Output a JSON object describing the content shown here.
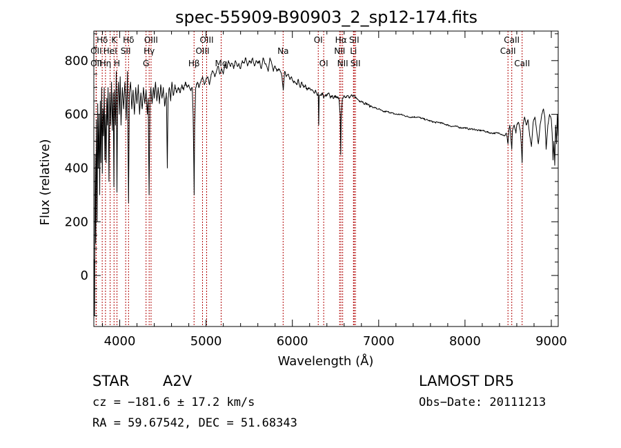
{
  "chart_data": {
    "type": "line",
    "title": "spec-55909-B90903_2_sp12-174.fits",
    "xlabel": "Wavelength (Å)",
    "ylabel": "Flux (relative)",
    "xlim": [
      3700,
      9080
    ],
    "ylim": [
      -190,
      910
    ],
    "xticks": [
      4000,
      5000,
      6000,
      7000,
      8000,
      9000
    ],
    "yticks": [
      0,
      200,
      400,
      600,
      800
    ],
    "grid": false,
    "line_color": "#000000",
    "marker_color": "#b00000",
    "spectrum_anchors": [
      [
        3702,
        60
      ],
      [
        3708,
        -150
      ],
      [
        3715,
        450
      ],
      [
        3722,
        120
      ],
      [
        3730,
        580
      ],
      [
        3738,
        200
      ],
      [
        3745,
        640
      ],
      [
        3752,
        400
      ],
      [
        3760,
        600
      ],
      [
        3768,
        300
      ],
      [
        3775,
        650
      ],
      [
        3782,
        420
      ],
      [
        3790,
        700
      ],
      [
        3798,
        380
      ],
      [
        3805,
        620
      ],
      [
        3812,
        520
      ],
      [
        3820,
        700
      ],
      [
        3828,
        430
      ],
      [
        3835,
        600
      ],
      [
        3842,
        420
      ],
      [
        3850,
        660
      ],
      [
        3858,
        560
      ],
      [
        3865,
        700
      ],
      [
        3875,
        350
      ],
      [
        3885,
        680
      ],
      [
        3895,
        560
      ],
      [
        3905,
        720
      ],
      [
        3915,
        540
      ],
      [
        3925,
        680
      ],
      [
        3933,
        330
      ],
      [
        3940,
        690
      ],
      [
        3950,
        560
      ],
      [
        3960,
        760
      ],
      [
        3968,
        310
      ],
      [
        3975,
        640
      ],
      [
        3985,
        720
      ],
      [
        3995,
        600
      ],
      [
        4005,
        740
      ],
      [
        4015,
        560
      ],
      [
        4030,
        700
      ],
      [
        4045,
        620
      ],
      [
        4060,
        720
      ],
      [
        4075,
        580
      ],
      [
        4090,
        760
      ],
      [
        4102,
        270
      ],
      [
        4112,
        680
      ],
      [
        4125,
        720
      ],
      [
        4140,
        620
      ],
      [
        4155,
        690
      ],
      [
        4170,
        600
      ],
      [
        4185,
        700
      ],
      [
        4200,
        640
      ],
      [
        4215,
        710
      ],
      [
        4230,
        600
      ],
      [
        4245,
        680
      ],
      [
        4260,
        620
      ],
      [
        4275,
        700
      ],
      [
        4290,
        640
      ],
      [
        4305,
        690
      ],
      [
        4320,
        600
      ],
      [
        4330,
        660
      ],
      [
        4340,
        300
      ],
      [
        4350,
        640
      ],
      [
        4360,
        700
      ],
      [
        4375,
        640
      ],
      [
        4390,
        700
      ],
      [
        4400,
        660
      ],
      [
        4415,
        720
      ],
      [
        4430,
        650
      ],
      [
        4445,
        700
      ],
      [
        4460,
        640
      ],
      [
        4475,
        710
      ],
      [
        4490,
        660
      ],
      [
        4505,
        700
      ],
      [
        4520,
        630
      ],
      [
        4540,
        680
      ],
      [
        4551,
        400
      ],
      [
        4560,
        660
      ],
      [
        4575,
        700
      ],
      [
        4590,
        650
      ],
      [
        4605,
        720
      ],
      [
        4620,
        670
      ],
      [
        4640,
        710
      ],
      [
        4660,
        680
      ],
      [
        4680,
        700
      ],
      [
        4700,
        680
      ],
      [
        4720,
        710
      ],
      [
        4740,
        690
      ],
      [
        4760,
        720
      ],
      [
        4780,
        700
      ],
      [
        4800,
        710
      ],
      [
        4820,
        690
      ],
      [
        4840,
        700
      ],
      [
        4850,
        600
      ],
      [
        4858,
        410
      ],
      [
        4862,
        300
      ],
      [
        4868,
        560
      ],
      [
        4880,
        700
      ],
      [
        4900,
        720
      ],
      [
        4920,
        700
      ],
      [
        4940,
        720
      ],
      [
        4960,
        740
      ],
      [
        4980,
        710
      ],
      [
        5000,
        730
      ],
      [
        5020,
        740
      ],
      [
        5040,
        710
      ],
      [
        5060,
        750
      ],
      [
        5080,
        760
      ],
      [
        5100,
        740
      ],
      [
        5120,
        760
      ],
      [
        5140,
        780
      ],
      [
        5160,
        750
      ],
      [
        5180,
        770
      ],
      [
        5200,
        750
      ],
      [
        5220,
        790
      ],
      [
        5240,
        770
      ],
      [
        5260,
        800
      ],
      [
        5280,
        780
      ],
      [
        5300,
        790
      ],
      [
        5320,
        770
      ],
      [
        5340,
        800
      ],
      [
        5360,
        780
      ],
      [
        5380,
        790
      ],
      [
        5400,
        770
      ],
      [
        5420,
        800
      ],
      [
        5440,
        790
      ],
      [
        5460,
        810
      ],
      [
        5480,
        780
      ],
      [
        5500,
        800
      ],
      [
        5520,
        790
      ],
      [
        5540,
        810
      ],
      [
        5560,
        780
      ],
      [
        5580,
        800
      ],
      [
        5600,
        790
      ],
      [
        5620,
        800
      ],
      [
        5640,
        770
      ],
      [
        5660,
        810
      ],
      [
        5680,
        790
      ],
      [
        5700,
        780
      ],
      [
        5720,
        760
      ],
      [
        5740,
        810
      ],
      [
        5760,
        790
      ],
      [
        5780,
        760
      ],
      [
        5800,
        780
      ],
      [
        5820,
        760
      ],
      [
        5840,
        770
      ],
      [
        5860,
        760
      ],
      [
        5880,
        740
      ],
      [
        5895,
        690
      ],
      [
        5910,
        760
      ],
      [
        5930,
        740
      ],
      [
        5950,
        750
      ],
      [
        5970,
        730
      ],
      [
        5990,
        740
      ],
      [
        6010,
        720
      ],
      [
        6030,
        720
      ],
      [
        6050,
        710
      ],
      [
        6070,
        730
      ],
      [
        6090,
        700
      ],
      [
        6110,
        720
      ],
      [
        6130,
        700
      ],
      [
        6150,
        710
      ],
      [
        6170,
        690
      ],
      [
        6190,
        700
      ],
      [
        6210,
        690
      ],
      [
        6230,
        690
      ],
      [
        6250,
        680
      ],
      [
        6270,
        690
      ],
      [
        6290,
        670
      ],
      [
        6300,
        680
      ],
      [
        6305,
        560
      ],
      [
        6310,
        670
      ],
      [
        6330,
        670
      ],
      [
        6350,
        680
      ],
      [
        6363,
        660
      ],
      [
        6380,
        670
      ],
      [
        6400,
        670
      ],
      [
        6420,
        680
      ],
      [
        6440,
        660
      ],
      [
        6460,
        670
      ],
      [
        6480,
        660
      ],
      [
        6500,
        670
      ],
      [
        6520,
        660
      ],
      [
        6540,
        660
      ],
      [
        6555,
        600
      ],
      [
        6560,
        450
      ],
      [
        6565,
        580
      ],
      [
        6580,
        660
      ],
      [
        6600,
        670
      ],
      [
        6620,
        665
      ],
      [
        6640,
        670
      ],
      [
        6660,
        660
      ],
      [
        6680,
        670
      ],
      [
        6700,
        665
      ],
      [
        6720,
        670
      ],
      [
        6740,
        660
      ],
      [
        6760,
        655
      ],
      [
        6780,
        650
      ],
      [
        6800,
        650
      ],
      [
        6820,
        645
      ],
      [
        6840,
        640
      ],
      [
        6860,
        640
      ],
      [
        6880,
        635
      ],
      [
        6900,
        630
      ],
      [
        6920,
        630
      ],
      [
        6940,
        625
      ],
      [
        6960,
        625
      ],
      [
        6980,
        620
      ],
      [
        7000,
        620
      ],
      [
        7050,
        610
      ],
      [
        7100,
        610
      ],
      [
        7150,
        605
      ],
      [
        7200,
        600
      ],
      [
        7250,
        600
      ],
      [
        7300,
        595
      ],
      [
        7350,
        590
      ],
      [
        7400,
        590
      ],
      [
        7450,
        590
      ],
      [
        7500,
        585
      ],
      [
        7550,
        580
      ],
      [
        7600,
        575
      ],
      [
        7650,
        570
      ],
      [
        7700,
        570
      ],
      [
        7750,
        565
      ],
      [
        7800,
        560
      ],
      [
        7850,
        555
      ],
      [
        7900,
        555
      ],
      [
        7950,
        550
      ],
      [
        8000,
        550
      ],
      [
        8050,
        545
      ],
      [
        8100,
        545
      ],
      [
        8150,
        540
      ],
      [
        8200,
        540
      ],
      [
        8250,
        535
      ],
      [
        8300,
        530
      ],
      [
        8350,
        530
      ],
      [
        8400,
        530
      ],
      [
        8430,
        525
      ],
      [
        8460,
        520
      ],
      [
        8480,
        530
      ],
      [
        8498,
        490
      ],
      [
        8508,
        540
      ],
      [
        8520,
        560
      ],
      [
        8530,
        520
      ],
      [
        8542,
        470
      ],
      [
        8550,
        540
      ],
      [
        8570,
        560
      ],
      [
        8590,
        530
      ],
      [
        8600,
        560
      ],
      [
        8620,
        570
      ],
      [
        8640,
        540
      ],
      [
        8650,
        500
      ],
      [
        8662,
        420
      ],
      [
        8672,
        560
      ],
      [
        8690,
        590
      ],
      [
        8710,
        560
      ],
      [
        8730,
        580
      ],
      [
        8750,
        520
      ],
      [
        8770,
        480
      ],
      [
        8790,
        570
      ],
      [
        8810,
        590
      ],
      [
        8830,
        540
      ],
      [
        8850,
        490
      ],
      [
        8870,
        560
      ],
      [
        8890,
        600
      ],
      [
        8910,
        620
      ],
      [
        8925,
        590
      ],
      [
        8940,
        470
      ],
      [
        8960,
        560
      ],
      [
        8980,
        600
      ],
      [
        9000,
        580
      ],
      [
        9010,
        530
      ],
      [
        9020,
        430
      ],
      [
        9030,
        500
      ],
      [
        9040,
        410
      ],
      [
        9050,
        560
      ],
      [
        9060,
        490
      ],
      [
        9070,
        600
      ],
      [
        9078,
        520
      ]
    ],
    "lines": [
      {
        "label": "Hδ",
        "wave": 3797,
        "row": 1
      },
      {
        "label": "OII",
        "wave": 3727,
        "row": 3
      },
      {
        "label": "Hη",
        "wave": 3835,
        "row": 3
      },
      {
        "label": "OII",
        "wave": 3727,
        "row": 2
      },
      {
        "label": "HeI",
        "wave": 3889,
        "row": 2
      },
      {
        "label": "K",
        "wave": 3934,
        "row": 1
      },
      {
        "label": "H",
        "wave": 3968,
        "row": 3
      },
      {
        "label": "SII",
        "wave": 4069,
        "row": 2
      },
      {
        "label": "Hδ",
        "wave": 4102,
        "row": 1
      },
      {
        "label": "OIII",
        "wave": 4363,
        "row": 1
      },
      {
        "label": "Hγ",
        "wave": 4341,
        "row": 2
      },
      {
        "label": "G",
        "wave": 4305,
        "row": 3
      },
      {
        "label": "Hβ",
        "wave": 4861,
        "row": 3
      },
      {
        "label": "OIII",
        "wave": 5007,
        "row": 1
      },
      {
        "label": "OIII",
        "wave": 4959,
        "row": 2
      },
      {
        "label": "Mg",
        "wave": 5175,
        "row": 3
      },
      {
        "label": "Na",
        "wave": 5893,
        "row": 2
      },
      {
        "label": "OI",
        "wave": 6300,
        "row": 1
      },
      {
        "label": "OI",
        "wave": 6363,
        "row": 3
      },
      {
        "label": "Hα",
        "wave": 6563,
        "row": 1
      },
      {
        "label": "NII",
        "wave": 6548,
        "row": 2
      },
      {
        "label": "NII",
        "wave": 6583,
        "row": 3
      },
      {
        "label": "SII",
        "wave": 6716,
        "row": 1
      },
      {
        "label": "Li",
        "wave": 6708,
        "row": 2
      },
      {
        "label": "SII",
        "wave": 6731,
        "row": 3
      },
      {
        "label": "CaII",
        "wave": 8542,
        "row": 1
      },
      {
        "label": "CaII",
        "wave": 8498,
        "row": 2
      },
      {
        "label": "CaII",
        "wave": 8662,
        "row": 3
      }
    ]
  },
  "info": {
    "class_label": "STAR",
    "subclass": "A2V",
    "survey": "LAMOST DR5",
    "cz": "cz = −181.6 ± 17.2 km/s",
    "obs_date": "Obs−Date: 20111213",
    "coords": "RA =  59.67542, DEC =  51.68343"
  }
}
